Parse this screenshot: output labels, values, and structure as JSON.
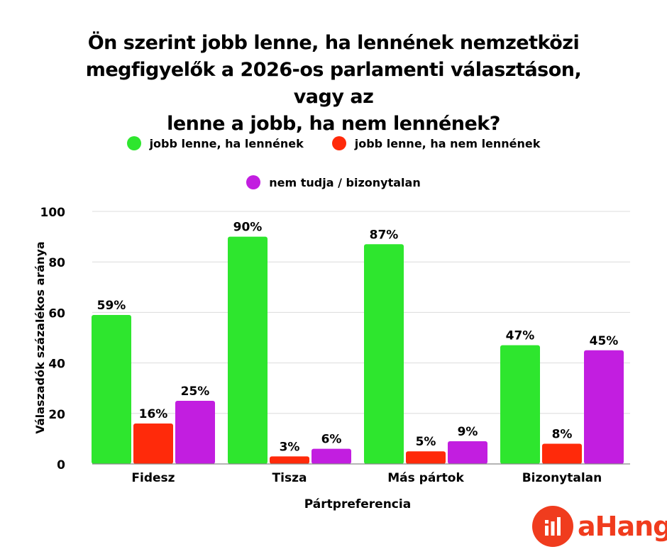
{
  "chart_data": {
    "type": "bar",
    "title_lines": [
      "Ön szerint jobb lenne, ha lennének nemzetközi",
      "megfigyelők a 2026-os parlamenti választáson, vagy az",
      "lenne a jobb, ha nem lennének?"
    ],
    "xlabel": "Pártpreferencia",
    "ylabel": "Válaszadók százalékos aránya",
    "ylim": [
      0,
      100
    ],
    "yticks": [
      0,
      20,
      40,
      60,
      80,
      100
    ],
    "categories": [
      "Fidesz",
      "Tisza",
      "Más pártok",
      "Bizonytalan"
    ],
    "series": [
      {
        "name": "jobb lenne, ha lennének",
        "color": "#2ee62e",
        "values": [
          59,
          90,
          87,
          47
        ],
        "labels": [
          "59%",
          "90%",
          "87%",
          "47%"
        ]
      },
      {
        "name": "jobb lenne, ha nem lennének",
        "color": "#ff2a0a",
        "values": [
          16,
          3,
          5,
          8
        ],
        "labels": [
          "16%",
          "3%",
          "5%",
          "8%"
        ]
      },
      {
        "name": "nem tudja / bizonytalan",
        "color": "#c21ee0",
        "values": [
          25,
          6,
          9,
          45
        ],
        "labels": [
          "25%",
          "6%",
          "9%",
          "45%"
        ]
      }
    ],
    "grid": true,
    "legend_placement": "top"
  },
  "logo": {
    "text": "aHang",
    "icon": "ahang-logo-icon",
    "color": "#f03c1e"
  }
}
